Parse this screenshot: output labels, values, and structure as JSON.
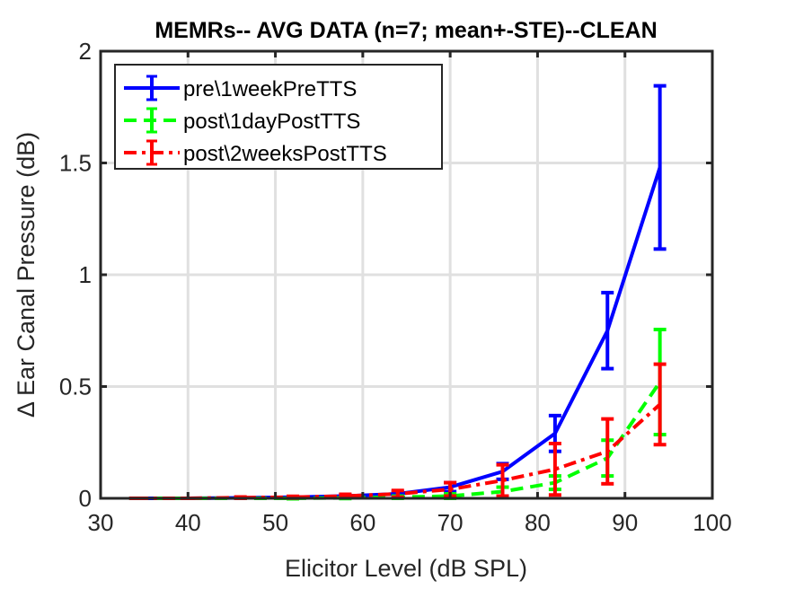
{
  "chart_data": {
    "type": "line",
    "title": "MEMRs-- AVG DATA (n=7; mean+-STE)--CLEAN",
    "xlabel": "Elicitor Level (dB SPL)",
    "ylabel": "Δ Ear Canal Pressure (dB)",
    "xlim": [
      30,
      100
    ],
    "ylim": [
      0,
      2
    ],
    "xticks": [
      30,
      40,
      50,
      60,
      70,
      80,
      90,
      100
    ],
    "yticks": [
      0,
      0.5,
      1,
      1.5,
      2
    ],
    "ytick_labels": [
      "0",
      "0.5",
      "1",
      "1.5",
      "2"
    ],
    "grid": true,
    "legend_position": "top-left",
    "x": [
      34,
      40,
      46,
      52,
      58,
      64,
      70,
      76,
      82,
      88,
      94
    ],
    "series": [
      {
        "name": "pre\\1weekPreTTS",
        "color": "#0000ff",
        "dash": "solid",
        "values": [
          0,
          0,
          0.002,
          0.005,
          0.01,
          0.02,
          0.05,
          0.12,
          0.29,
          0.75,
          1.48
        ],
        "errors": [
          0,
          0,
          0.002,
          0.003,
          0.005,
          0.01,
          0.02,
          0.035,
          0.08,
          0.17,
          0.365
        ]
      },
      {
        "name": "post\\1dayPostTTS",
        "color": "#00ff00",
        "dash": "dashed",
        "values": [
          0,
          0,
          0,
          0,
          0.002,
          0.005,
          0.01,
          0.03,
          0.07,
          0.18,
          0.52
        ],
        "errors": [
          0,
          0,
          0,
          0.002,
          0.003,
          0.005,
          0.01,
          0.02,
          0.03,
          0.08,
          0.235
        ]
      },
      {
        "name": "post\\2weeksPostTTS",
        "color": "#ff0000",
        "dash": "dashdot",
        "values": [
          0,
          0,
          0.003,
          0.005,
          0.01,
          0.02,
          0.04,
          0.08,
          0.13,
          0.21,
          0.42
        ],
        "errors": [
          0,
          0,
          0.003,
          0.004,
          0.008,
          0.015,
          0.03,
          0.07,
          0.115,
          0.145,
          0.18
        ]
      }
    ]
  }
}
